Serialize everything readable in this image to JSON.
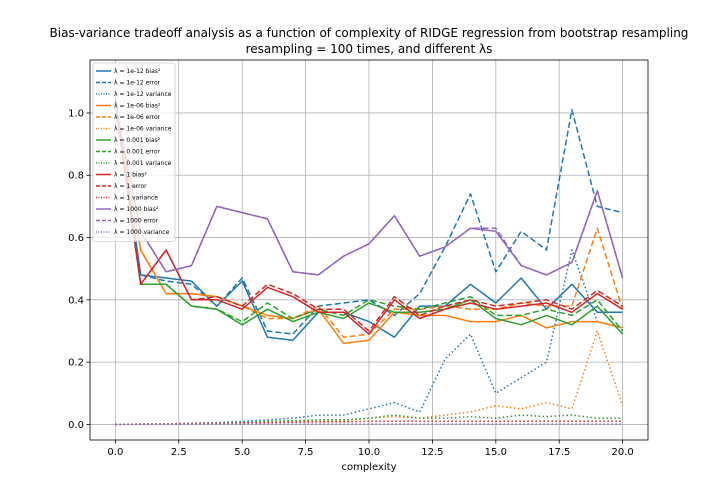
{
  "chart_data": {
    "type": "line",
    "title": [
      "Bias-variance tradeoff analysis as a function of complexity of RIDGE regression from bootstrap resampling",
      "resampling = 100 times, and different λs"
    ],
    "xlabel": "complexity",
    "ylabel": "",
    "xlim": [
      -1,
      21
    ],
    "ylim": [
      -0.05,
      1.17
    ],
    "xticks": [
      0.0,
      2.5,
      5.0,
      7.5,
      10.0,
      12.5,
      15.0,
      17.5,
      20.0
    ],
    "xtick_labels": [
      "0.0",
      "2.5",
      "5.0",
      "7.5",
      "10.0",
      "12.5",
      "15.0",
      "17.5",
      "20.0"
    ],
    "yticks": [
      0.0,
      0.2,
      0.4,
      0.6,
      0.8,
      1.0
    ],
    "ytick_labels": [
      "0.0",
      "0.2",
      "0.4",
      "0.6",
      "0.8",
      "1.0"
    ],
    "grid": true,
    "legend_position": "upper-left",
    "x": [
      0,
      1,
      2,
      3,
      4,
      5,
      6,
      7,
      8,
      9,
      10,
      11,
      12,
      13,
      14,
      15,
      16,
      17,
      18,
      19,
      20
    ],
    "series": [
      {
        "name": "λ = 1e-12 bias²",
        "color": "#1f77b4",
        "style": "solid",
        "values": [
          1.05,
          0.48,
          0.47,
          0.46,
          0.38,
          0.46,
          0.28,
          0.27,
          0.36,
          0.36,
          0.33,
          0.28,
          0.38,
          0.38,
          0.45,
          0.39,
          0.47,
          0.37,
          0.45,
          0.36,
          0.36
        ]
      },
      {
        "name": "λ = 1e-12 error",
        "color": "#1f77b4",
        "style": "dashed",
        "values": [
          1.05,
          0.48,
          0.46,
          0.45,
          0.38,
          0.47,
          0.3,
          0.29,
          0.38,
          0.39,
          0.4,
          0.35,
          0.42,
          0.57,
          0.74,
          0.49,
          0.62,
          0.56,
          1.01,
          0.7,
          0.68
        ]
      },
      {
        "name": "λ = 1e-12 variance",
        "color": "#1f77b4",
        "style": "dotted",
        "values": [
          0.0,
          0.001,
          0.002,
          0.004,
          0.006,
          0.01,
          0.015,
          0.02,
          0.03,
          0.03,
          0.05,
          0.07,
          0.04,
          0.21,
          0.29,
          0.1,
          0.15,
          0.2,
          0.56,
          0.33,
          0.31
        ]
      },
      {
        "name": "λ = 1e-06 bias²",
        "color": "#ff7f0e",
        "style": "solid",
        "values": [
          1.03,
          0.56,
          0.42,
          0.42,
          0.41,
          0.38,
          0.35,
          0.34,
          0.37,
          0.26,
          0.27,
          0.36,
          0.35,
          0.35,
          0.33,
          0.33,
          0.35,
          0.31,
          0.33,
          0.33,
          0.31
        ]
      },
      {
        "name": "λ = 1e-06 error",
        "color": "#ff7f0e",
        "style": "dashed",
        "values": [
          1.03,
          0.56,
          0.42,
          0.42,
          0.41,
          0.38,
          0.34,
          0.34,
          0.38,
          0.28,
          0.29,
          0.37,
          0.37,
          0.38,
          0.37,
          0.37,
          0.39,
          0.38,
          0.38,
          0.63,
          0.37
        ]
      },
      {
        "name": "λ = 1e-06 variance",
        "color": "#ff7f0e",
        "style": "dotted",
        "values": [
          0.0,
          0.001,
          0.002,
          0.003,
          0.004,
          0.006,
          0.008,
          0.01,
          0.01,
          0.012,
          0.02,
          0.025,
          0.02,
          0.03,
          0.04,
          0.06,
          0.05,
          0.07,
          0.05,
          0.3,
          0.06
        ]
      },
      {
        "name": "λ = 0.001 bias²",
        "color": "#2ca02c",
        "style": "solid",
        "values": [
          1.03,
          0.45,
          0.45,
          0.38,
          0.37,
          0.32,
          0.37,
          0.33,
          0.36,
          0.34,
          0.39,
          0.36,
          0.36,
          0.37,
          0.4,
          0.34,
          0.32,
          0.35,
          0.32,
          0.38,
          0.29
        ]
      },
      {
        "name": "λ = 0.001 error",
        "color": "#2ca02c",
        "style": "dashed",
        "values": [
          1.03,
          0.45,
          0.45,
          0.38,
          0.37,
          0.33,
          0.39,
          0.34,
          0.37,
          0.35,
          0.4,
          0.38,
          0.37,
          0.39,
          0.41,
          0.35,
          0.35,
          0.37,
          0.35,
          0.4,
          0.3
        ]
      },
      {
        "name": "λ = 0.001 variance",
        "color": "#2ca02c",
        "style": "dotted",
        "values": [
          0.0,
          0.001,
          0.002,
          0.003,
          0.005,
          0.007,
          0.01,
          0.012,
          0.015,
          0.015,
          0.02,
          0.03,
          0.02,
          0.02,
          0.025,
          0.02,
          0.03,
          0.025,
          0.03,
          0.02,
          0.02
        ]
      },
      {
        "name": "λ = 1 bias²",
        "color": "#d62728",
        "style": "solid",
        "values": [
          1.03,
          0.45,
          0.56,
          0.4,
          0.4,
          0.37,
          0.44,
          0.41,
          0.36,
          0.36,
          0.29,
          0.4,
          0.34,
          0.37,
          0.39,
          0.37,
          0.38,
          0.39,
          0.36,
          0.42,
          0.37
        ]
      },
      {
        "name": "λ = 1 error",
        "color": "#d62728",
        "style": "dashed",
        "values": [
          1.03,
          0.45,
          0.56,
          0.4,
          0.41,
          0.38,
          0.45,
          0.42,
          0.37,
          0.37,
          0.3,
          0.41,
          0.35,
          0.38,
          0.4,
          0.38,
          0.39,
          0.4,
          0.37,
          0.43,
          0.38
        ]
      },
      {
        "name": "λ = 1 variance",
        "color": "#d62728",
        "style": "dotted",
        "values": [
          0.0,
          0.001,
          0.002,
          0.003,
          0.004,
          0.005,
          0.006,
          0.007,
          0.008,
          0.008,
          0.01,
          0.01,
          0.01,
          0.01,
          0.01,
          0.01,
          0.01,
          0.01,
          0.01,
          0.01,
          0.01
        ]
      },
      {
        "name": "λ = 1000 bias²",
        "color": "#9467bd",
        "style": "solid",
        "values": [
          1.03,
          0.62,
          0.49,
          0.51,
          0.7,
          0.68,
          0.66,
          0.49,
          0.48,
          0.54,
          0.58,
          0.67,
          0.54,
          0.57,
          0.63,
          0.62,
          0.51,
          0.48,
          0.52,
          0.75,
          0.47
        ]
      },
      {
        "name": "λ = 1000 error",
        "color": "#9467bd",
        "style": "dashed",
        "values": [
          1.03,
          0.62,
          0.49,
          0.51,
          0.7,
          0.68,
          0.66,
          0.49,
          0.48,
          0.54,
          0.58,
          0.67,
          0.54,
          0.57,
          0.63,
          0.63,
          0.51,
          0.48,
          0.52,
          0.75,
          0.47
        ]
      },
      {
        "name": "λ = 1000 variance",
        "color": "#9467bd",
        "style": "dotted",
        "values": [
          0.0,
          0.0005,
          0.001,
          0.001,
          0.001,
          0.001,
          0.001,
          0.001,
          0.001,
          0.001,
          0.001,
          0.001,
          0.001,
          0.001,
          0.001,
          0.001,
          0.001,
          0.001,
          0.001,
          0.001,
          0.001
        ]
      }
    ]
  }
}
